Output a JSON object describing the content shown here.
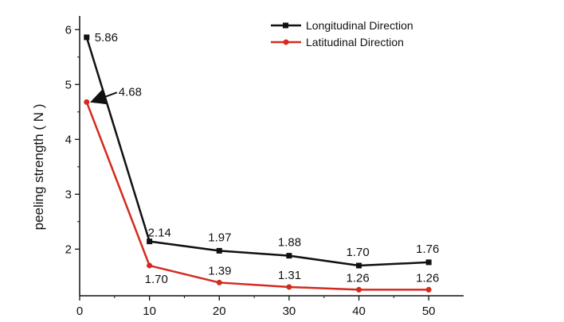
{
  "chart_data": {
    "type": "line",
    "title": "",
    "xlabel": "",
    "ylabel": "peeling strength ( N )",
    "x": [
      1,
      10,
      20,
      30,
      40,
      50
    ],
    "x_ticks": [
      0,
      10,
      20,
      30,
      40,
      50
    ],
    "y_ticks": [
      2,
      3,
      4,
      5,
      6
    ],
    "xlim": [
      0,
      55
    ],
    "ylim": [
      1.15,
      6.25
    ],
    "grid": false,
    "legend_position": "top-right",
    "series": [
      {
        "name": "Longitudinal Direction",
        "color": "#111111",
        "marker": "square",
        "values": [
          5.86,
          2.14,
          1.97,
          1.88,
          1.7,
          1.76
        ],
        "labels": [
          "5.86",
          "2.14",
          "1.97",
          "1.88",
          "1.70",
          "1.76"
        ]
      },
      {
        "name": "Latitudinal Direction",
        "color": "#d42a1e",
        "marker": "circle",
        "values": [
          4.68,
          1.7,
          1.39,
          1.31,
          1.26,
          1.26
        ],
        "labels": [
          "4.68",
          "1.70",
          "1.39",
          "1.31",
          "1.26",
          "1.26"
        ]
      }
    ]
  }
}
